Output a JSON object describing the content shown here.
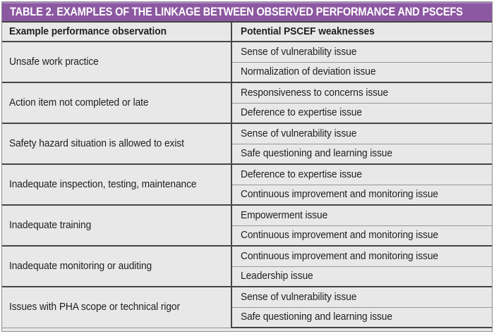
{
  "table": {
    "title": "TABLE 2. EXAMPLES OF THE LINKAGE BETWEEN OBSERVED PERFORMANCE AND PSCEFS",
    "columns": [
      "Example performance observation",
      "Potential PSCEF weaknesses"
    ],
    "rows": [
      {
        "observation": "Unsafe work practice",
        "weaknesses": [
          "Sense of vulnerability issue",
          "Normalization of deviation issue"
        ]
      },
      {
        "observation": "Action item not completed or late",
        "weaknesses": [
          "Responsiveness to concerns issue",
          "Deference to expertise issue"
        ]
      },
      {
        "observation": "Safety hazard situation is allowed to exist",
        "weaknesses": [
          "Sense of vulnerability issue",
          "Safe questioning and learning issue"
        ]
      },
      {
        "observation": "Inadequate inspection, testing, maintenance",
        "weaknesses": [
          "Deference to expertise issue",
          "Continuous improvement and monitoring issue"
        ]
      },
      {
        "observation": "Inadequate training",
        "weaknesses": [
          "Empowerment issue",
          "Continuous improvement and monitoring issue"
        ]
      },
      {
        "observation": "Inadequate monitoring or auditing",
        "weaknesses": [
          "Continuous improvement and monitoring issue",
          "Leadership issue"
        ]
      },
      {
        "observation": "Issues with PHA scope or technical rigor",
        "weaknesses": [
          "Sense of vulnerability issue",
          "Safe questioning and learning issue"
        ]
      }
    ],
    "colors": {
      "title_bg": "#8c58a1",
      "title_highlight": "#aa82c4",
      "title_text": "#ffffff",
      "cell_bg": "#e9e8e8",
      "border_dark": "#454545",
      "border_light": "#979797",
      "text": "#1f1f1f"
    }
  }
}
